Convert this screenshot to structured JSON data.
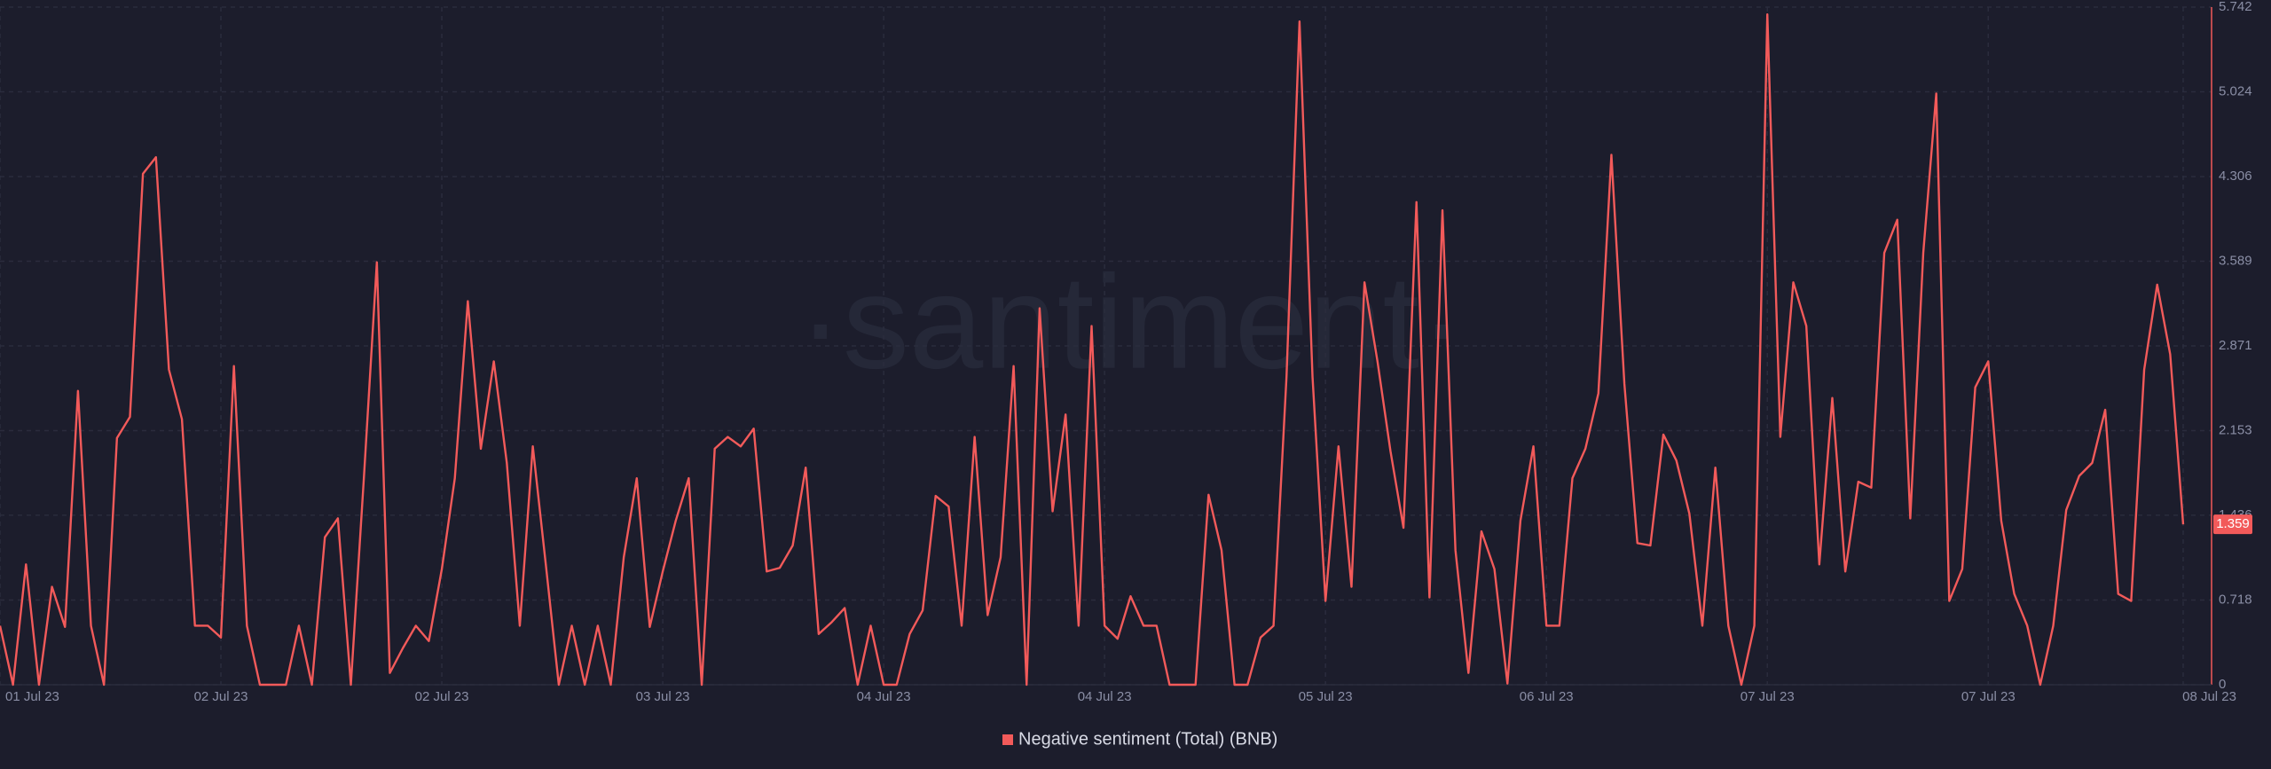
{
  "chart_data": {
    "type": "line",
    "watermark": "·santiment·",
    "series": [
      {
        "name": "Negative sentiment (Total) (BNB)",
        "color": "#f25a5a",
        "values": [
          0.5,
          0,
          1.02,
          0,
          0.83,
          0.49,
          2.49,
          0.5,
          0,
          2.09,
          2.27,
          4.33,
          4.47,
          2.67,
          2.25,
          0.5,
          0.5,
          0.4,
          2.7,
          0.5,
          0,
          0,
          0,
          0.5,
          0,
          1.25,
          1.41,
          0,
          1.75,
          3.58,
          0.1,
          0.31,
          0.5,
          0.37,
          0.98,
          1.75,
          3.25,
          2.0,
          2.74,
          1.88,
          0.5,
          2.02,
          1.02,
          0,
          0.5,
          0,
          0.5,
          0,
          1.08,
          1.75,
          0.49,
          0.96,
          1.39,
          1.75,
          0,
          2.0,
          2.1,
          2.02,
          2.17,
          0.96,
          0.99,
          1.18,
          1.84,
          0.43,
          0.53,
          0.65,
          0,
          0.5,
          0,
          0,
          0.43,
          0.63,
          1.6,
          1.51,
          0.5,
          2.1,
          0.59,
          1.08,
          2.7,
          0,
          3.19,
          1.47,
          2.29,
          0.5,
          3.04,
          0.5,
          0.39,
          0.75,
          0.5,
          0.5,
          0,
          0,
          0,
          1.61,
          1.14,
          0,
          0,
          0.4,
          0.5,
          2.61,
          5.62,
          2.61,
          0.71,
          2.02,
          0.83,
          3.41,
          2.74,
          1.98,
          1.33,
          4.09,
          0.74,
          4.02,
          1.14,
          0.1,
          1.3,
          0.98,
          0.01,
          1.39,
          2.02,
          0.5,
          0.5,
          1.75,
          2.0,
          2.47,
          4.49,
          2.55,
          1.2,
          1.18,
          2.12,
          1.9,
          1.45,
          0.5,
          1.84,
          0.5,
          0,
          0.5,
          5.68,
          2.1,
          3.41,
          3.04,
          1.02,
          2.43,
          0.96,
          1.72,
          1.67,
          3.66,
          3.94,
          1.41,
          3.66,
          5.01,
          0.71,
          0.98,
          2.52,
          2.74,
          1.39,
          0.77,
          0.5,
          0,
          0.5,
          1.48,
          1.77,
          1.88,
          2.33,
          0.77,
          0.71,
          2.67,
          3.39,
          2.8,
          1.359
        ]
      }
    ],
    "xlim": [
      0,
      168
    ],
    "xticks": [
      {
        "value": 0,
        "label": "01 Jul 23"
      },
      {
        "value": 17,
        "label": "02 Jul 23"
      },
      {
        "value": 34,
        "label": "02 Jul 23"
      },
      {
        "value": 51,
        "label": "03 Jul 23"
      },
      {
        "value": 68,
        "label": "04 Jul 23"
      },
      {
        "value": 85,
        "label": "04 Jul 23"
      },
      {
        "value": 102,
        "label": "05 Jul 23"
      },
      {
        "value": 119,
        "label": "06 Jul 23"
      },
      {
        "value": 136,
        "label": "07 Jul 23"
      },
      {
        "value": 153,
        "label": "07 Jul 23"
      },
      {
        "value": 168,
        "label": "08 Jul 23"
      }
    ],
    "ylim": [
      0,
      5.742
    ],
    "yticks": [
      0,
      0.718,
      1.436,
      2.153,
      2.871,
      3.589,
      4.306,
      5.024,
      5.742
    ],
    "grid": true
  }
}
